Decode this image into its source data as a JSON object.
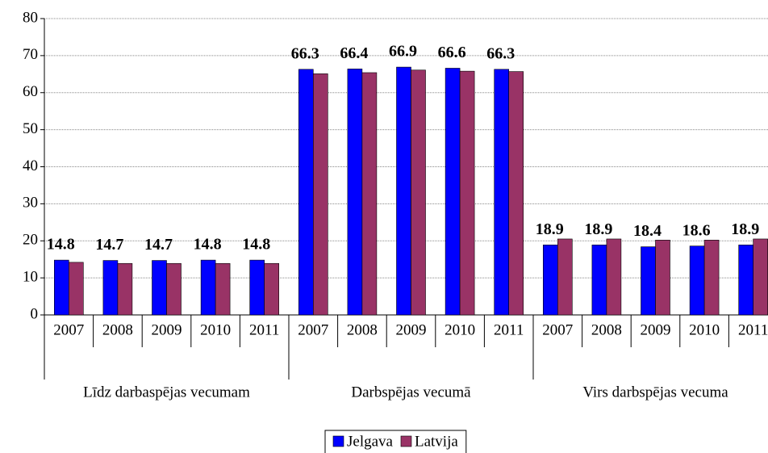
{
  "chart_data": {
    "type": "bar",
    "groups": [
      {
        "name": "Līdz darbaspējas vecumam",
        "categories": [
          "2007",
          "2008",
          "2009",
          "2010",
          "2011"
        ]
      },
      {
        "name": "Darbspējas vecumā",
        "categories": [
          "2007",
          "2008",
          "2009",
          "2010",
          "2011"
        ]
      },
      {
        "name": "Virs darbspējas vecuma",
        "categories": [
          "2007",
          "2008",
          "2009",
          "2010",
          "2011"
        ]
      }
    ],
    "series": [
      {
        "name": "Jelgava",
        "color": "#0000ff",
        "values": [
          14.8,
          14.7,
          14.7,
          14.8,
          14.8,
          66.3,
          66.4,
          66.9,
          66.6,
          66.3,
          18.9,
          18.9,
          18.4,
          18.6,
          18.9
        ]
      },
      {
        "name": "Latvija",
        "color": "#993366",
        "values": [
          14.2,
          13.9,
          13.9,
          13.9,
          13.9,
          65.1,
          65.4,
          66.1,
          65.8,
          65.7,
          20.5,
          20.5,
          20.2,
          20.2,
          20.5
        ]
      }
    ],
    "ylim": [
      0,
      80
    ],
    "yticks": [
      0,
      10,
      20,
      30,
      40,
      50,
      60,
      70,
      80
    ],
    "grid": true,
    "value_labels_series": 0,
    "legend": "bottom"
  }
}
